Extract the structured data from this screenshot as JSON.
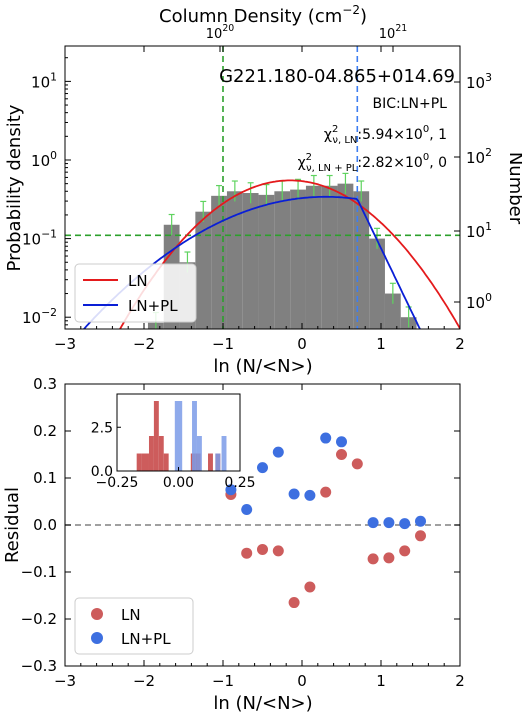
{
  "chart_data": [
    {
      "type": "bar",
      "title": "G221.180-04.865+014.69",
      "top_axis_label": "Column Density (cm",
      "top_axis_label_sup": "−2",
      "top_axis_label_end": ")",
      "top_ticks": [
        {
          "base": "10",
          "exp": "20"
        },
        {
          "base": "10",
          "exp": "21"
        }
      ],
      "xlabel": "ln (N/<N>)",
      "ylabel": "Probability density",
      "ylabel_right": "Number",
      "xlim": [
        -3,
        2
      ],
      "ylim_log10": [
        -2.15,
        1.45
      ],
      "x_ticks": [
        "−3",
        "−2",
        "−1",
        "0",
        "1",
        "2"
      ],
      "y_ticks_left": [
        {
          "base": "10",
          "exp": "−2"
        },
        {
          "base": "10",
          "exp": "−1"
        },
        {
          "base": "10",
          "exp": "0"
        },
        {
          "base": "10",
          "exp": "1"
        }
      ],
      "y_ticks_right": [
        {
          "base": "10",
          "exp": "0"
        },
        {
          "base": "10",
          "exp": "1"
        },
        {
          "base": "10",
          "exp": "2"
        },
        {
          "base": "10",
          "exp": "3"
        }
      ],
      "annotations": {
        "bic": "BIC:LN+PL",
        "chi_ln": {
          "chi": "χ",
          "sup": "2",
          "sub": "ν, LN",
          "rest": ":5.94×10",
          "exp": "0",
          "tail": ", 1"
        },
        "chi_lnpl": {
          "chi": "χ",
          "sup": "2",
          "sub": "ν, LN + PL",
          "rest": ":2.82×10",
          "exp": "0",
          "tail": ", 0"
        }
      },
      "histogram": {
        "bin_edges": [
          -1.95,
          -1.75,
          -1.55,
          -1.35,
          -1.15,
          -0.95,
          -0.75,
          -0.55,
          -0.35,
          -0.15,
          0.05,
          0.25,
          0.45,
          0.65,
          0.85,
          1.05,
          1.25,
          1.45
        ],
        "density": [
          0.0085,
          0.15,
          0.05,
          0.22,
          0.35,
          0.4,
          0.38,
          0.36,
          0.4,
          0.42,
          0.47,
          0.47,
          0.5,
          0.4,
          0.1,
          0.02,
          0.01
        ],
        "color": "#808080"
      },
      "series": [
        {
          "name": "LN",
          "color": "#e41a1c",
          "model": "lognormal",
          "peak": 0.55,
          "mu": -0.15,
          "sigma": 0.73
        },
        {
          "name": "LN+PL",
          "color": "#0a1fd6",
          "model": "lognormal+powerlaw",
          "peak": 0.34,
          "mu": 0.3,
          "sigma": 1.1,
          "transition": 0.7
        }
      ],
      "reference_lines": [
        {
          "orientation": "vertical",
          "x": -1.0,
          "color": "#2ca02c",
          "style": "dashed"
        },
        {
          "orientation": "vertical",
          "x": 0.7,
          "color": "#3d7ef2",
          "style": "dashed"
        },
        {
          "orientation": "horizontal",
          "y": 0.11,
          "color": "#2ca02c",
          "style": "dashed"
        }
      ],
      "legend": {
        "placement": "lower-left"
      }
    },
    {
      "type": "scatter",
      "xlabel": "ln (N/<N>)",
      "ylabel": "Residual",
      "xlim": [
        -3,
        2
      ],
      "ylim": [
        -0.3,
        0.3
      ],
      "x_ticks": [
        "−3",
        "−2",
        "−1",
        "0",
        "1",
        "2"
      ],
      "y_ticks": [
        "−0.3",
        "−0.2",
        "−0.1",
        "0.0",
        "0.1",
        "0.2",
        "0.3"
      ],
      "zero_line": {
        "y": 0.0,
        "color": "#808080",
        "style": "dashed"
      },
      "series": [
        {
          "name": "LN",
          "color": "#cd5c5c",
          "x": [
            -0.9,
            -0.7,
            -0.5,
            -0.3,
            -0.1,
            0.1,
            0.3,
            0.5,
            0.7,
            0.9,
            1.1,
            1.3,
            1.5
          ],
          "y": [
            0.065,
            -0.06,
            -0.052,
            -0.055,
            -0.165,
            -0.132,
            0.07,
            0.15,
            0.13,
            -0.072,
            -0.07,
            -0.055,
            -0.023
          ]
        },
        {
          "name": "LN+PL",
          "color": "#3d6fe0",
          "x": [
            -0.9,
            -0.7,
            -0.5,
            -0.3,
            -0.1,
            0.1,
            0.3,
            0.5,
            0.9,
            1.1,
            1.3,
            1.5
          ],
          "y": [
            0.075,
            0.033,
            0.122,
            0.155,
            0.066,
            0.063,
            0.185,
            0.177,
            0.005,
            0.005,
            0.003,
            0.008
          ]
        }
      ],
      "legend": {
        "placement": "lower-left"
      },
      "inset": {
        "type": "histogram",
        "xlim": [
          -0.25,
          0.25
        ],
        "ylim": [
          0,
          4.4
        ],
        "x_ticks": [
          "−0.25",
          "0.00",
          "0.25"
        ],
        "y_ticks": [
          "0.0",
          "2.5"
        ],
        "series": [
          {
            "name": "LN",
            "color": "#cd5c5c",
            "bins": [
              [
                -0.17,
                -0.15,
                1
              ],
              [
                -0.15,
                -0.12,
                1
              ],
              [
                -0.12,
                -0.1,
                2
              ],
              [
                -0.1,
                -0.08,
                4
              ],
              [
                -0.08,
                -0.06,
                2
              ],
              [
                -0.06,
                -0.04,
                1
              ],
              [
                0.05,
                0.07,
                1
              ],
              [
                0.07,
                0.09,
                1
              ],
              [
                0.12,
                0.14,
                1
              ],
              [
                0.15,
                0.17,
                1
              ]
            ]
          },
          {
            "name": "LN+PL",
            "color": "#7b9be8",
            "bins": [
              [
                -0.015,
                0.015,
                4
              ],
              [
                0.055,
                0.075,
                4
              ],
              [
                0.075,
                0.095,
                2
              ],
              [
                0.15,
                0.17,
                1
              ],
              [
                0.175,
                0.195,
                2
              ]
            ]
          }
        ]
      }
    }
  ]
}
